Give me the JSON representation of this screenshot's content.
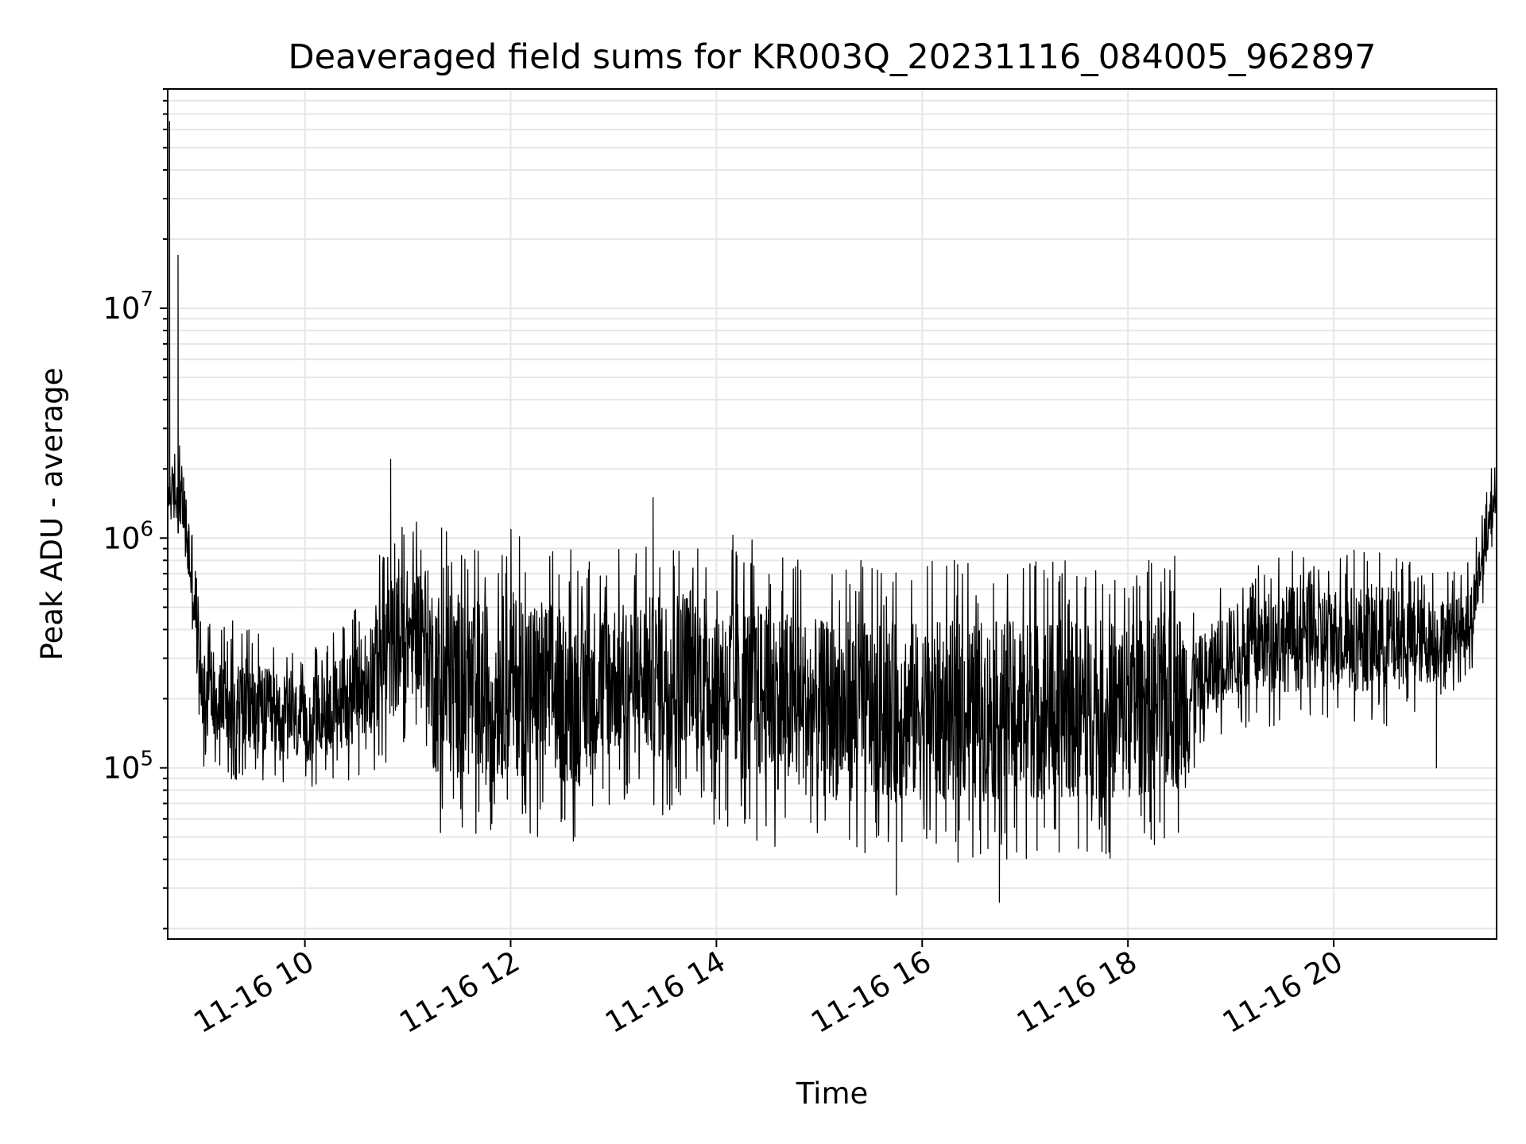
{
  "chart_data": {
    "type": "line",
    "title": "Deaveraged field sums for KR003Q_20231116_084005_962897",
    "xlabel": "Time",
    "ylabel": "Peak ADU - average",
    "yscale": "log",
    "xlim": [
      "2023-11-16 08:40",
      "2023-11-16 21:35"
    ],
    "ylim": [
      18000,
      90000000
    ],
    "grid": true,
    "grid_minor_y": true,
    "line_color": "#000000",
    "grid_color": "#e6e6e6",
    "x_ticks": [
      {
        "value": "2023-11-16 10:00",
        "label": "11-16 10"
      },
      {
        "value": "2023-11-16 12:00",
        "label": "11-16 12"
      },
      {
        "value": "2023-11-16 14:00",
        "label": "11-16 14"
      },
      {
        "value": "2023-11-16 16:00",
        "label": "11-16 16"
      },
      {
        "value": "2023-11-16 18:00",
        "label": "11-16 18"
      },
      {
        "value": "2023-11-16 20:00",
        "label": "11-16 20"
      }
    ],
    "y_ticks": [
      {
        "value": 100000,
        "base": "10",
        "exp": "5"
      },
      {
        "value": 1000000,
        "base": "10",
        "exp": "6"
      },
      {
        "value": 10000000,
        "base": "10",
        "exp": "7"
      }
    ],
    "envelope": [
      {
        "time": "2023-11-16 08:40",
        "low": 1000000,
        "high": 2500000
      },
      {
        "time": "2023-11-16 08:48",
        "low": 900000,
        "high": 2600000
      },
      {
        "time": "2023-11-16 08:55",
        "low": 250000,
        "high": 1500000
      },
      {
        "time": "2023-11-16 09:00",
        "low": 100000,
        "high": 500000
      },
      {
        "time": "2023-11-16 09:30",
        "low": 80000,
        "high": 400000
      },
      {
        "time": "2023-11-16 10:00",
        "low": 80000,
        "high": 300000
      },
      {
        "time": "2023-11-16 10:30",
        "low": 90000,
        "high": 500000
      },
      {
        "time": "2023-11-16 10:50",
        "low": 100000,
        "high": 1100000
      },
      {
        "time": "2023-11-16 11:10",
        "low": 150000,
        "high": 1200000
      },
      {
        "time": "2023-11-16 11:15",
        "low": 50000,
        "high": 1200000
      },
      {
        "time": "2023-11-16 11:45",
        "low": 45000,
        "high": 1000000
      },
      {
        "time": "2023-11-16 12:00",
        "low": 50000,
        "high": 1100000
      },
      {
        "time": "2023-11-16 12:40",
        "low": 45000,
        "high": 900000
      },
      {
        "time": "2023-11-16 13:00",
        "low": 70000,
        "high": 900000
      },
      {
        "time": "2023-11-16 13:30",
        "low": 60000,
        "high": 1000000
      },
      {
        "time": "2023-11-16 13:45",
        "low": 80000,
        "high": 1100000
      },
      {
        "time": "2023-11-16 14:00",
        "low": 50000,
        "high": 1100000
      },
      {
        "time": "2023-11-16 15:00",
        "low": 40000,
        "high": 800000
      },
      {
        "time": "2023-11-16 16:00",
        "low": 38000,
        "high": 800000
      },
      {
        "time": "2023-11-16 17:00",
        "low": 40000,
        "high": 800000
      },
      {
        "time": "2023-11-16 18:00",
        "low": 40000,
        "high": 800000
      },
      {
        "time": "2023-11-16 18:35",
        "low": 45000,
        "high": 900000
      },
      {
        "time": "2023-11-16 18:40",
        "low": 100000,
        "high": 500000
      },
      {
        "time": "2023-11-16 19:00",
        "low": 150000,
        "high": 700000
      },
      {
        "time": "2023-11-16 19:30",
        "low": 150000,
        "high": 900000
      },
      {
        "time": "2023-11-16 20:00",
        "low": 150000,
        "high": 900000
      },
      {
        "time": "2023-11-16 20:30",
        "low": 150000,
        "high": 900000
      },
      {
        "time": "2023-11-16 21:00",
        "low": 180000,
        "high": 700000
      },
      {
        "time": "2023-11-16 21:20",
        "low": 250000,
        "high": 800000
      },
      {
        "time": "2023-11-16 21:35",
        "low": 1200000,
        "high": 2600000
      }
    ],
    "spikes": [
      {
        "time": "2023-11-16 08:41",
        "value": 65000000
      },
      {
        "time": "2023-11-16 08:46",
        "value": 17000000
      },
      {
        "time": "2023-11-16 10:50",
        "value": 2200000
      },
      {
        "time": "2023-11-16 13:23",
        "value": 1500000
      },
      {
        "time": "2023-11-16 21:00",
        "value": 100000
      },
      {
        "time": "2023-11-16 16:45",
        "value": 26000
      },
      {
        "time": "2023-11-16 15:45",
        "value": 28000
      }
    ]
  }
}
